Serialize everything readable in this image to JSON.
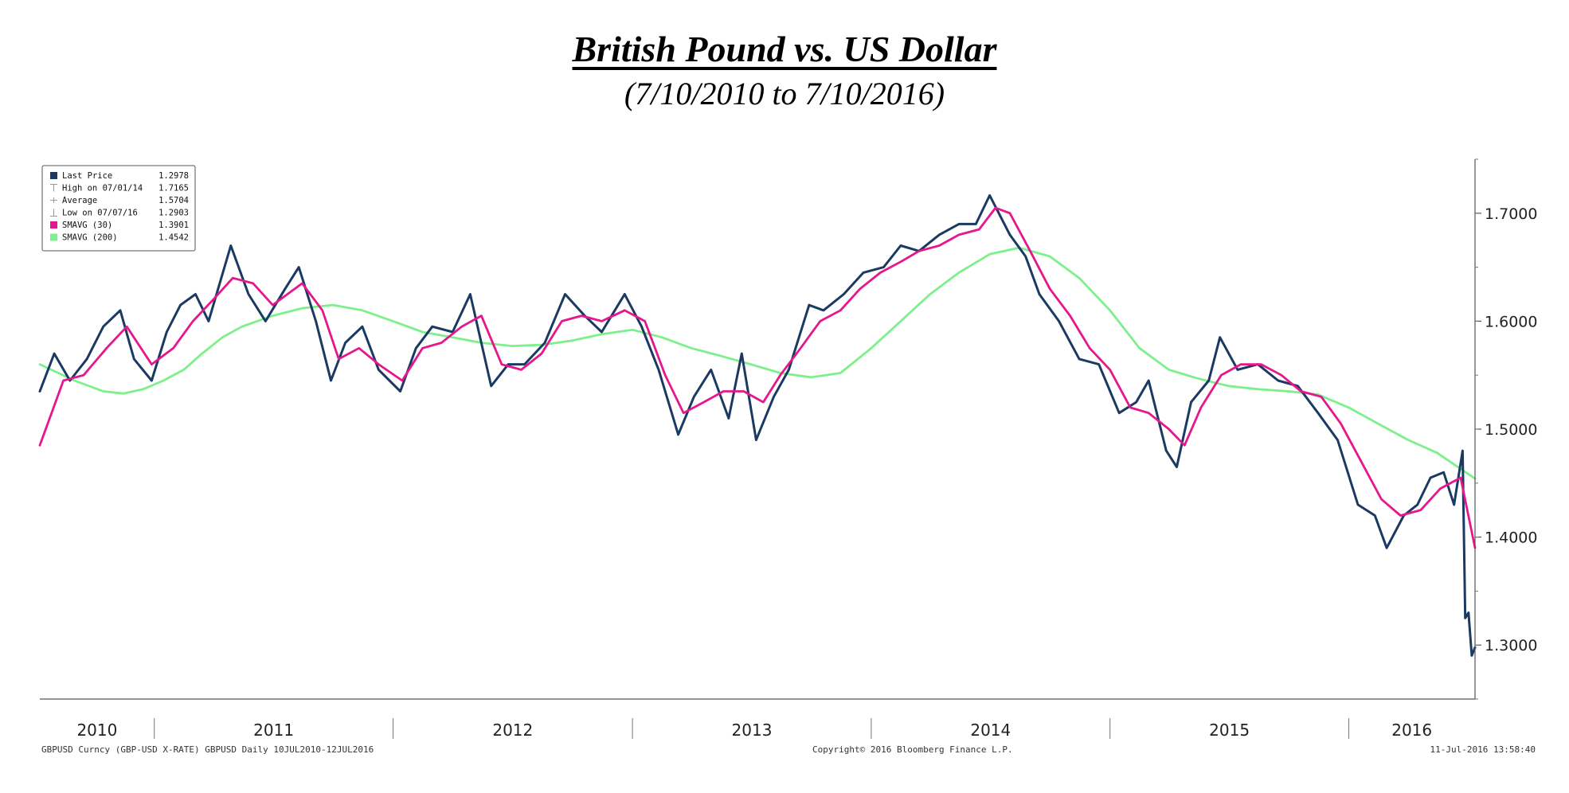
{
  "chart_data": {
    "type": "line",
    "title": "British Pound vs. US Dollar",
    "subtitle": "(7/10/2010 to 7/10/2016)",
    "x_axis": {
      "type": "date",
      "range": [
        "2010-07-10",
        "2016-07-12"
      ],
      "tick_labels": [
        "2010",
        "2011",
        "2012",
        "2013",
        "2014",
        "2015",
        "2016"
      ]
    },
    "y_axis": {
      "range": [
        1.25,
        1.75
      ],
      "ticks": [
        1.3,
        1.4,
        1.5,
        1.6,
        1.7
      ],
      "tick_labels": [
        "1.3000",
        "1.4000",
        "1.5000",
        "1.6000",
        "1.7000"
      ],
      "position": "right"
    },
    "grid": false,
    "legend_placement": "top-left",
    "legend": [
      {
        "label": "Last Price",
        "value": "1.2978",
        "marker": "square",
        "color": "#1b3a63"
      },
      {
        "label": "High on 07/01/14",
        "value": "1.7165",
        "marker": "high",
        "color": "#999999"
      },
      {
        "label": "Average",
        "value": "1.5704",
        "marker": "avg",
        "color": "#999999"
      },
      {
        "label": "Low on 07/07/16",
        "value": "1.2903",
        "marker": "low",
        "color": "#999999"
      },
      {
        "label": "SMAVG (30)",
        "value": "1.3901",
        "marker": "square",
        "color": "#e6168c"
      },
      {
        "label": "SMAVG (200)",
        "value": "1.4542",
        "marker": "square",
        "color": "#7df08c"
      }
    ],
    "series": [
      {
        "name": "Last Price",
        "color": "#1b3a63",
        "points": [
          [
            "2010-07-10",
            1.535
          ],
          [
            "2010-08-01",
            1.57
          ],
          [
            "2010-08-25",
            1.545
          ],
          [
            "2010-09-20",
            1.565
          ],
          [
            "2010-10-15",
            1.595
          ],
          [
            "2010-11-10",
            1.61
          ],
          [
            "2010-12-01",
            1.565
          ],
          [
            "2010-12-28",
            1.545
          ],
          [
            "2011-01-20",
            1.59
          ],
          [
            "2011-02-10",
            1.615
          ],
          [
            "2011-03-05",
            1.625
          ],
          [
            "2011-03-25",
            1.6
          ],
          [
            "2011-04-28",
            1.67
          ],
          [
            "2011-05-25",
            1.625
          ],
          [
            "2011-06-20",
            1.6
          ],
          [
            "2011-07-20",
            1.63
          ],
          [
            "2011-08-10",
            1.65
          ],
          [
            "2011-09-05",
            1.6
          ],
          [
            "2011-09-28",
            1.545
          ],
          [
            "2011-10-20",
            1.58
          ],
          [
            "2011-11-15",
            1.595
          ],
          [
            "2011-12-10",
            1.555
          ],
          [
            "2012-01-12",
            1.535
          ],
          [
            "2012-02-05",
            1.575
          ],
          [
            "2012-03-01",
            1.595
          ],
          [
            "2012-04-01",
            1.59
          ],
          [
            "2012-04-28",
            1.625
          ],
          [
            "2012-05-30",
            1.54
          ],
          [
            "2012-06-25",
            1.56
          ],
          [
            "2012-07-20",
            1.56
          ],
          [
            "2012-08-20",
            1.58
          ],
          [
            "2012-09-20",
            1.625
          ],
          [
            "2012-10-20",
            1.605
          ],
          [
            "2012-11-15",
            1.59
          ],
          [
            "2012-12-20",
            1.625
          ],
          [
            "2013-01-15",
            1.595
          ],
          [
            "2013-02-10",
            1.555
          ],
          [
            "2013-03-12",
            1.495
          ],
          [
            "2013-04-05",
            1.53
          ],
          [
            "2013-05-01",
            1.555
          ],
          [
            "2013-05-28",
            1.51
          ],
          [
            "2013-06-17",
            1.57
          ],
          [
            "2013-07-09",
            1.49
          ],
          [
            "2013-08-05",
            1.53
          ],
          [
            "2013-08-28",
            1.555
          ],
          [
            "2013-09-28",
            1.615
          ],
          [
            "2013-10-20",
            1.61
          ],
          [
            "2013-11-20",
            1.625
          ],
          [
            "2013-12-20",
            1.645
          ],
          [
            "2014-01-20",
            1.65
          ],
          [
            "2014-02-15",
            1.67
          ],
          [
            "2014-03-15",
            1.665
          ],
          [
            "2014-04-15",
            1.68
          ],
          [
            "2014-05-15",
            1.69
          ],
          [
            "2014-06-10",
            1.69
          ],
          [
            "2014-07-01",
            1.7165
          ],
          [
            "2014-08-01",
            1.68
          ],
          [
            "2014-08-25",
            1.66
          ],
          [
            "2014-09-15",
            1.625
          ],
          [
            "2014-10-15",
            1.6
          ],
          [
            "2014-11-15",
            1.565
          ],
          [
            "2014-12-15",
            1.56
          ],
          [
            "2015-01-15",
            1.515
          ],
          [
            "2015-02-10",
            1.525
          ],
          [
            "2015-03-01",
            1.545
          ],
          [
            "2015-03-28",
            1.48
          ],
          [
            "2015-04-13",
            1.465
          ],
          [
            "2015-05-05",
            1.525
          ],
          [
            "2015-06-01",
            1.545
          ],
          [
            "2015-06-18",
            1.585
          ],
          [
            "2015-07-15",
            1.555
          ],
          [
            "2015-08-15",
            1.56
          ],
          [
            "2015-09-15",
            1.545
          ],
          [
            "2015-10-15",
            1.54
          ],
          [
            "2015-11-15",
            1.515
          ],
          [
            "2015-12-15",
            1.49
          ],
          [
            "2016-01-15",
            1.43
          ],
          [
            "2016-02-10",
            1.42
          ],
          [
            "2016-02-28",
            1.39
          ],
          [
            "2016-03-25",
            1.42
          ],
          [
            "2016-04-15",
            1.43
          ],
          [
            "2016-05-05",
            1.455
          ],
          [
            "2016-05-25",
            1.46
          ],
          [
            "2016-06-10",
            1.43
          ],
          [
            "2016-06-23",
            1.48
          ],
          [
            "2016-06-27",
            1.325
          ],
          [
            "2016-07-02",
            1.33
          ],
          [
            "2016-07-07",
            1.2903
          ],
          [
            "2016-07-12",
            1.2978
          ]
        ]
      },
      {
        "name": "SMAVG (30)",
        "color": "#e6168c",
        "points": [
          [
            "2010-07-10",
            1.485
          ],
          [
            "2010-08-15",
            1.545
          ],
          [
            "2010-09-15",
            1.55
          ],
          [
            "2010-10-20",
            1.575
          ],
          [
            "2010-11-20",
            1.595
          ],
          [
            "2010-12-28",
            1.56
          ],
          [
            "2011-01-30",
            1.575
          ],
          [
            "2011-03-01",
            1.6
          ],
          [
            "2011-04-01",
            1.62
          ],
          [
            "2011-05-01",
            1.64
          ],
          [
            "2011-06-01",
            1.635
          ],
          [
            "2011-07-01",
            1.615
          ],
          [
            "2011-08-15",
            1.635
          ],
          [
            "2011-09-15",
            1.61
          ],
          [
            "2011-10-10",
            1.565
          ],
          [
            "2011-11-10",
            1.575
          ],
          [
            "2011-12-10",
            1.56
          ],
          [
            "2012-01-15",
            1.545
          ],
          [
            "2012-02-15",
            1.575
          ],
          [
            "2012-03-15",
            1.58
          ],
          [
            "2012-04-15",
            1.595
          ],
          [
            "2012-05-15",
            1.605
          ],
          [
            "2012-06-15",
            1.56
          ],
          [
            "2012-07-15",
            1.555
          ],
          [
            "2012-08-15",
            1.57
          ],
          [
            "2012-09-15",
            1.6
          ],
          [
            "2012-10-15",
            1.605
          ],
          [
            "2012-11-15",
            1.6
          ],
          [
            "2012-12-20",
            1.61
          ],
          [
            "2013-01-20",
            1.6
          ],
          [
            "2013-02-20",
            1.55
          ],
          [
            "2013-03-20",
            1.515
          ],
          [
            "2013-04-20",
            1.525
          ],
          [
            "2013-05-20",
            1.535
          ],
          [
            "2013-06-20",
            1.535
          ],
          [
            "2013-07-20",
            1.525
          ],
          [
            "2013-08-15",
            1.55
          ],
          [
            "2013-09-15",
            1.575
          ],
          [
            "2013-10-15",
            1.6
          ],
          [
            "2013-11-15",
            1.61
          ],
          [
            "2013-12-15",
            1.63
          ],
          [
            "2014-01-15",
            1.645
          ],
          [
            "2014-02-15",
            1.655
          ],
          [
            "2014-03-15",
            1.665
          ],
          [
            "2014-04-15",
            1.67
          ],
          [
            "2014-05-15",
            1.68
          ],
          [
            "2014-06-15",
            1.685
          ],
          [
            "2014-07-10",
            1.705
          ],
          [
            "2014-08-01",
            1.7
          ],
          [
            "2014-09-01",
            1.665
          ],
          [
            "2014-10-01",
            1.63
          ],
          [
            "2014-11-01",
            1.605
          ],
          [
            "2014-12-01",
            1.575
          ],
          [
            "2015-01-01",
            1.555
          ],
          [
            "2015-02-01",
            1.52
          ],
          [
            "2015-03-01",
            1.515
          ],
          [
            "2015-04-01",
            1.5
          ],
          [
            "2015-04-25",
            1.485
          ],
          [
            "2015-05-20",
            1.52
          ],
          [
            "2015-06-20",
            1.55
          ],
          [
            "2015-07-20",
            1.56
          ],
          [
            "2015-08-20",
            1.56
          ],
          [
            "2015-09-20",
            1.55
          ],
          [
            "2015-10-20",
            1.535
          ],
          [
            "2015-11-20",
            1.53
          ],
          [
            "2015-12-20",
            1.505
          ],
          [
            "2016-01-20",
            1.47
          ],
          [
            "2016-02-20",
            1.435
          ],
          [
            "2016-03-20",
            1.42
          ],
          [
            "2016-04-20",
            1.425
          ],
          [
            "2016-05-20",
            1.445
          ],
          [
            "2016-06-20",
            1.455
          ],
          [
            "2016-07-12",
            1.3901
          ]
        ]
      },
      {
        "name": "SMAVG (200)",
        "color": "#7df08c",
        "points": [
          [
            "2010-07-10",
            1.56
          ],
          [
            "2010-09-01",
            1.545
          ],
          [
            "2010-10-15",
            1.535
          ],
          [
            "2010-11-15",
            1.533
          ],
          [
            "2010-12-15",
            1.537
          ],
          [
            "2011-01-15",
            1.545
          ],
          [
            "2011-02-15",
            1.555
          ],
          [
            "2011-03-15",
            1.57
          ],
          [
            "2011-04-15",
            1.585
          ],
          [
            "2011-05-15",
            1.595
          ],
          [
            "2011-07-01",
            1.605
          ],
          [
            "2011-08-15",
            1.612
          ],
          [
            "2011-10-01",
            1.615
          ],
          [
            "2011-11-15",
            1.61
          ],
          [
            "2012-01-01",
            1.6
          ],
          [
            "2012-02-15",
            1.59
          ],
          [
            "2012-04-01",
            1.585
          ],
          [
            "2012-05-15",
            1.58
          ],
          [
            "2012-07-01",
            1.577
          ],
          [
            "2012-08-15",
            1.578
          ],
          [
            "2012-10-01",
            1.582
          ],
          [
            "2012-11-15",
            1.588
          ],
          [
            "2013-01-01",
            1.592
          ],
          [
            "2013-02-15",
            1.585
          ],
          [
            "2013-04-01",
            1.575
          ],
          [
            "2013-05-15",
            1.568
          ],
          [
            "2013-07-01",
            1.56
          ],
          [
            "2013-08-15",
            1.552
          ],
          [
            "2013-10-01",
            1.548
          ],
          [
            "2013-11-15",
            1.552
          ],
          [
            "2014-01-01",
            1.575
          ],
          [
            "2014-02-15",
            1.6
          ],
          [
            "2014-04-01",
            1.625
          ],
          [
            "2014-05-15",
            1.645
          ],
          [
            "2014-07-01",
            1.662
          ],
          [
            "2014-08-15",
            1.668
          ],
          [
            "2014-10-01",
            1.66
          ],
          [
            "2014-11-15",
            1.64
          ],
          [
            "2015-01-01",
            1.61
          ],
          [
            "2015-02-15",
            1.575
          ],
          [
            "2015-04-01",
            1.555
          ],
          [
            "2015-05-15",
            1.547
          ],
          [
            "2015-07-01",
            1.54
          ],
          [
            "2015-08-15",
            1.537
          ],
          [
            "2015-10-01",
            1.535
          ],
          [
            "2015-11-15",
            1.532
          ],
          [
            "2016-01-01",
            1.52
          ],
          [
            "2016-02-15",
            1.505
          ],
          [
            "2016-04-01",
            1.49
          ],
          [
            "2016-05-15",
            1.478
          ],
          [
            "2016-07-12",
            1.4542
          ]
        ]
      }
    ]
  },
  "footer": {
    "left": "GBPUSD Curncy (GBP-USD X-RATE) GBPUSD  Daily 10JUL2010-12JUL2016",
    "center": "Copyright© 2016 Bloomberg Finance L.P.",
    "right": "11-Jul-2016 13:58:40"
  }
}
